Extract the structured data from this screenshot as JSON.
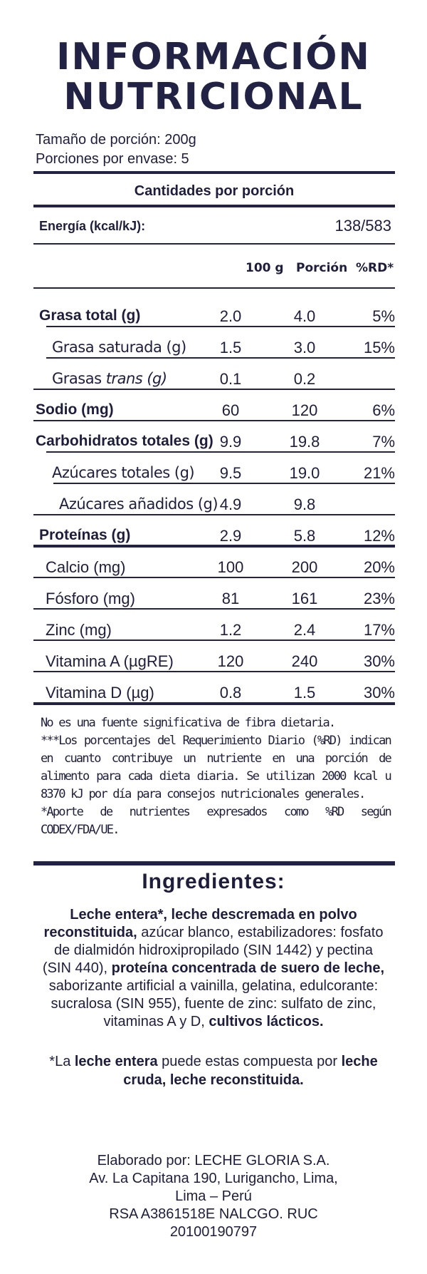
{
  "title": {
    "line1": "INFORMACIÓN",
    "line2": "NUTRICIONAL"
  },
  "serving": {
    "size": "Tamaño de porción: 200g",
    "per_container": "Porciones por envase: 5"
  },
  "amounts_header": "Cantidades por porción",
  "energy": {
    "label": "Energía (kcal/kJ):",
    "value": "138/583"
  },
  "columns": {
    "c1": "100 g",
    "c2": "Porción",
    "c3": "%RD*"
  },
  "rows": [
    {
      "name": "Grasa total (g)",
      "v100": "2.0",
      "portion": "4.0",
      "rd": "5%"
    },
    {
      "name": "Grasa saturada (g)",
      "v100": "1.5",
      "portion": "3.0",
      "rd": "15%"
    },
    {
      "name_pre": "Grasas ",
      "name_em": "trans (g)",
      "v100": "0.1",
      "portion": "0.2",
      "rd": ""
    },
    {
      "name": "Sodio (mg)",
      "v100": "60",
      "portion": "120",
      "rd": "6%"
    },
    {
      "name": "Carbohidratos totales (g)",
      "v100": "9.9",
      "portion": "19.8",
      "rd": "7%"
    },
    {
      "name": "Azúcares totales (g)",
      "v100": "9.5",
      "portion": "19.0",
      "rd": "21%"
    },
    {
      "name": "Azúcares añadidos (g)",
      "v100": "4.9",
      "portion": "9.8",
      "rd": ""
    },
    {
      "name": "Proteínas (g)",
      "v100": "2.9",
      "portion": "5.8",
      "rd": "12%"
    },
    {
      "name": "Calcio (mg)",
      "v100": "100",
      "portion": "200",
      "rd": "20%"
    },
    {
      "name": "Fósforo (mg)",
      "v100": "81",
      "portion": "161",
      "rd": "23%"
    },
    {
      "name": "Zinc (mg)",
      "v100": "1.2",
      "portion": "2.4",
      "rd": "17%"
    },
    {
      "name": "Vitamina A (µgRE)",
      "v100": "120",
      "portion": "240",
      "rd": "30%"
    },
    {
      "name": "Vitamina D (µg)",
      "v100": "0.8",
      "portion": "1.5",
      "rd": "30%"
    }
  ],
  "notes": {
    "fiber": "No es una fuente significativa de fibra dietaria.",
    "rd": "***Los porcentajes del Requerimiento Diario (%RD) indican en cuanto contribuye un nutriente en una porción de alimento para cada dieta diaria. Se utilizan 2000 kcal u 8370 kJ por día para consejos nutricionales generales.",
    "codex": "*Aporte de nutrientes expresados como %RD según CODEX/FDA/UE."
  },
  "ingredients": {
    "title": "Ingredientes:",
    "p1_bold": "Leche entera*, leche descremada en polvo reconstituida,",
    "p1_rest": " azúcar blanco, estabilizadores: fosfato de dialmidón hidroxipropilado (SIN 1442) y pectina (SIN 440),",
    "p2_bold": " proteína concentrada de suero de leche,",
    "p2_rest": " saborizante artificial a vainilla, gelatina, edulcorante: sucralosa (SIN 955), fuente de zinc: sulfato de zinc, vitaminas A y D,",
    "p3_bold": " cultivos lácticos."
  },
  "footnote": {
    "pre": "*La ",
    "bold1": "leche entera",
    "mid": " puede estas compuesta por ",
    "bold2": "leche cruda, leche reconstituida."
  },
  "manufacturer": {
    "line1": "Elaborado por: LECHE GLORIA S.A.",
    "line2": "Av. La Capitana 190, Lurigancho, Lima,",
    "line3": "Lima – Perú",
    "line4": "RSA A3861518E NALCGO. RUC",
    "line5": "20100190797"
  },
  "colors": {
    "text": "#1e1e3c",
    "rule": "#222244"
  }
}
